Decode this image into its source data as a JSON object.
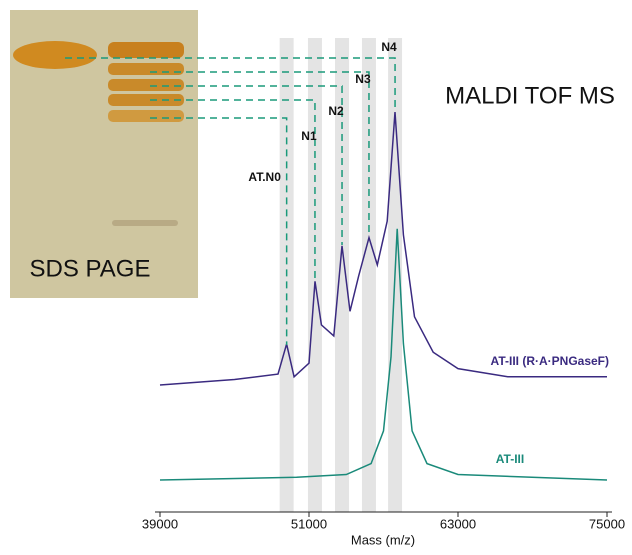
{
  "chart_data": {
    "type": "line",
    "title": "MALDI TOF MS",
    "gel_label": "SDS PAGE",
    "x_label": "Mass (m/z)",
    "xlim": [
      39000,
      75000
    ],
    "xticks": [
      39000,
      51000,
      63000,
      75000
    ],
    "annotations": [
      {
        "text": "AT.N0",
        "x": 49200
      },
      {
        "text": "N1",
        "x": 51480
      },
      {
        "text": "N2",
        "x": 53660
      },
      {
        "text": "N3",
        "x": 55830
      },
      {
        "text": "N4",
        "x": 57930
      }
    ],
    "series": [
      {
        "name": "AT-III (R·A·PNGaseF)",
        "color": "#3a2a80",
        "x": [
          39000,
          45000,
          48500,
          49200,
          49800,
          51000,
          51480,
          52000,
          53000,
          53660,
          54300,
          55000,
          55830,
          56500,
          57300,
          57930,
          58600,
          59500,
          61000,
          63000,
          67000,
          75000
        ],
        "values": [
          0,
          2,
          4,
          15,
          3,
          8,
          38,
          22,
          18,
          51,
          27,
          40,
          54,
          44,
          60,
          100,
          55,
          25,
          12,
          6,
          3,
          3
        ]
      },
      {
        "name": "AT-III",
        "color": "#1a8a7a",
        "x": [
          39000,
          50000,
          54000,
          56000,
          57000,
          57600,
          58100,
          58600,
          59300,
          60500,
          63000,
          75000
        ],
        "values": [
          0,
          1,
          2,
          6,
          18,
          45,
          92,
          50,
          18,
          6,
          2,
          0
        ]
      }
    ]
  }
}
